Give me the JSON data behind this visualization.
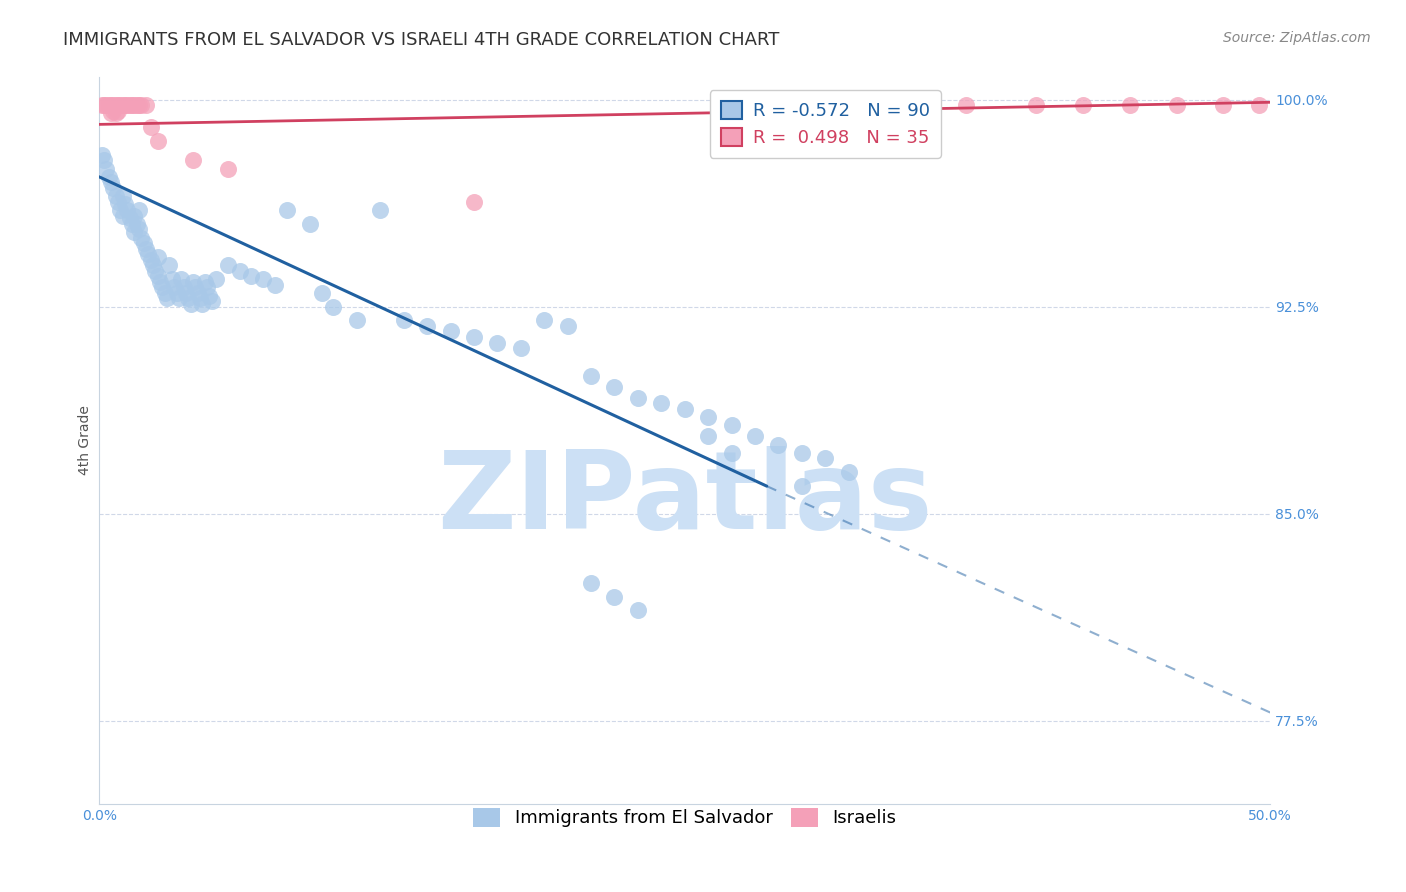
{
  "title": "IMMIGRANTS FROM EL SALVADOR VS ISRAELI 4TH GRADE CORRELATION CHART",
  "source": "Source: ZipAtlas.com",
  "ylabel": "4th Grade",
  "xlim": [
    0.0,
    0.5
  ],
  "ylim": [
    0.745,
    1.008
  ],
  "xticks": [
    0.0,
    0.1,
    0.2,
    0.3,
    0.4,
    0.5
  ],
  "xticklabels": [
    "0.0%",
    "",
    "",
    "",
    "",
    "50.0%"
  ],
  "ytick_vals": [
    0.775,
    0.85,
    0.925,
    1.0
  ],
  "ytick_labels": [
    "77.5%",
    "85.0%",
    "92.5%",
    "100.0%"
  ],
  "blue_color": "#a8c8e8",
  "pink_color": "#f4a0b8",
  "blue_line_color": "#2060a0",
  "pink_line_color": "#d04060",
  "watermark": "ZIPatlas",
  "watermark_color": "#cce0f5",
  "blue_scatter_x": [
    0.001,
    0.002,
    0.003,
    0.004,
    0.005,
    0.006,
    0.007,
    0.008,
    0.009,
    0.01,
    0.01,
    0.011,
    0.012,
    0.013,
    0.014,
    0.015,
    0.015,
    0.016,
    0.017,
    0.017,
    0.018,
    0.019,
    0.02,
    0.021,
    0.022,
    0.023,
    0.024,
    0.025,
    0.025,
    0.026,
    0.027,
    0.028,
    0.029,
    0.03,
    0.031,
    0.032,
    0.033,
    0.034,
    0.035,
    0.036,
    0.037,
    0.038,
    0.039,
    0.04,
    0.041,
    0.042,
    0.043,
    0.044,
    0.045,
    0.046,
    0.047,
    0.048,
    0.05,
    0.055,
    0.06,
    0.065,
    0.07,
    0.075,
    0.08,
    0.09,
    0.095,
    0.1,
    0.11,
    0.12,
    0.13,
    0.14,
    0.15,
    0.16,
    0.17,
    0.18,
    0.19,
    0.2,
    0.21,
    0.22,
    0.23,
    0.24,
    0.25,
    0.26,
    0.27,
    0.28,
    0.29,
    0.3,
    0.31,
    0.32,
    0.26,
    0.27,
    0.3,
    0.21,
    0.22,
    0.23
  ],
  "blue_scatter_y": [
    0.98,
    0.978,
    0.975,
    0.972,
    0.97,
    0.968,
    0.965,
    0.963,
    0.96,
    0.958,
    0.965,
    0.962,
    0.96,
    0.957,
    0.955,
    0.952,
    0.958,
    0.955,
    0.953,
    0.96,
    0.95,
    0.948,
    0.946,
    0.944,
    0.942,
    0.94,
    0.938,
    0.936,
    0.943,
    0.934,
    0.932,
    0.93,
    0.928,
    0.94,
    0.935,
    0.932,
    0.93,
    0.928,
    0.935,
    0.932,
    0.93,
    0.928,
    0.926,
    0.934,
    0.932,
    0.93,
    0.928,
    0.926,
    0.934,
    0.932,
    0.929,
    0.927,
    0.935,
    0.94,
    0.938,
    0.936,
    0.935,
    0.933,
    0.96,
    0.955,
    0.93,
    0.925,
    0.92,
    0.96,
    0.92,
    0.918,
    0.916,
    0.914,
    0.912,
    0.91,
    0.92,
    0.918,
    0.9,
    0.896,
    0.892,
    0.89,
    0.888,
    0.885,
    0.882,
    0.878,
    0.875,
    0.872,
    0.87,
    0.865,
    0.878,
    0.872,
    0.86,
    0.825,
    0.82,
    0.815
  ],
  "pink_scatter_x": [
    0.001,
    0.002,
    0.003,
    0.004,
    0.005,
    0.005,
    0.006,
    0.006,
    0.007,
    0.007,
    0.008,
    0.008,
    0.009,
    0.01,
    0.011,
    0.012,
    0.013,
    0.014,
    0.015,
    0.016,
    0.017,
    0.018,
    0.02,
    0.022,
    0.025,
    0.04,
    0.055,
    0.16,
    0.37,
    0.4,
    0.42,
    0.44,
    0.46,
    0.48,
    0.495
  ],
  "pink_scatter_y": [
    0.998,
    0.998,
    0.998,
    0.998,
    0.998,
    0.995,
    0.998,
    0.996,
    0.998,
    0.995,
    0.998,
    0.996,
    0.998,
    0.998,
    0.998,
    0.998,
    0.998,
    0.998,
    0.998,
    0.998,
    0.998,
    0.998,
    0.998,
    0.99,
    0.985,
    0.978,
    0.975,
    0.963,
    0.998,
    0.998,
    0.998,
    0.998,
    0.998,
    0.998,
    0.998
  ],
  "blue_trend_x0": 0.0,
  "blue_trend_y0": 0.972,
  "blue_trend_x1_solid": 0.285,
  "blue_trend_y1_solid": 0.86,
  "blue_trend_x1_dashed": 0.5,
  "blue_trend_y1_dashed": 0.778,
  "pink_trend_x0": 0.0,
  "pink_trend_y0": 0.991,
  "pink_trend_x1": 0.5,
  "pink_trend_y1": 0.999,
  "legend_blue_label": "R = -0.572   N = 90",
  "legend_pink_label": "R =  0.498   N = 35",
  "dot_legend_blue": "Immigrants from El Salvador",
  "dot_legend_pink": "Israelis",
  "title_fontsize": 13,
  "axis_label_fontsize": 10,
  "tick_fontsize": 10,
  "legend_fontsize": 13,
  "source_fontsize": 10,
  "title_color": "#333333",
  "tick_color": "#4a90d9",
  "ylabel_color": "#555555",
  "grid_color": "#d0d8e8",
  "spine_color": "#c8d4e0"
}
